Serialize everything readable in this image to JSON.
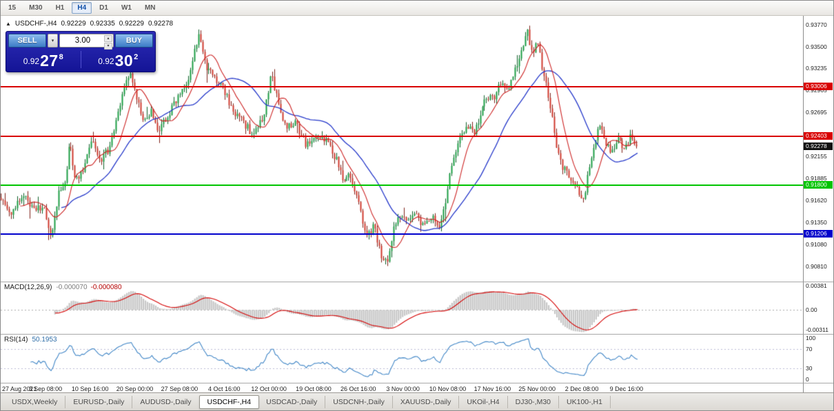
{
  "toolbar": {
    "timeframes": [
      "15",
      "M30",
      "H1",
      "H4",
      "D1",
      "W1",
      "MN"
    ],
    "active": "H4"
  },
  "chart": {
    "collapse_icon": "▲",
    "header": {
      "symbol": "USDCHF-,H4",
      "open": "0.92229",
      "high": "0.92335",
      "low": "0.92229",
      "close": "0.92278"
    },
    "hlines": [
      {
        "label": "0.93006",
        "price": 0.93006,
        "color": "#d90000"
      },
      {
        "label": "0.92403",
        "price": 0.92403,
        "color": "#d90000"
      },
      {
        "label": "0.91800",
        "price": 0.918,
        "color": "#00c400"
      },
      {
        "label": "0.91206",
        "price": 0.91206,
        "color": "#0000cc"
      }
    ],
    "current_price": {
      "label": "0.92278",
      "price": 0.92278,
      "bg": "#101010"
    }
  },
  "trade_panel": {
    "sell_label": "SELL",
    "buy_label": "BUY",
    "volume": "3.00",
    "dropdown_icon": "▾",
    "spin_up_icon": "▴",
    "spin_down_icon": "▾",
    "sell_price": {
      "prefix": "0.92",
      "pips": "27",
      "point": "8"
    },
    "buy_price": {
      "prefix": "0.92",
      "pips": "30",
      "point": "2"
    }
  },
  "price_axis": {
    "ticks": [
      {
        "label": "0.93770",
        "value": 0.9377
      },
      {
        "label": "0.93500",
        "value": 0.935
      },
      {
        "label": "0.93235",
        "value": 0.93235
      },
      {
        "label": "0.92965",
        "value": 0.92965
      },
      {
        "label": "0.92695",
        "value": 0.92695
      },
      {
        "label": "0.92425",
        "value": 0.92425
      },
      {
        "label": "0.92155",
        "value": 0.92155
      },
      {
        "label": "0.91885",
        "value": 0.91885
      },
      {
        "label": "0.91620",
        "value": 0.9162
      },
      {
        "label": "0.91350",
        "value": 0.9135
      },
      {
        "label": "0.91080",
        "value": 0.9108
      },
      {
        "label": "0.90810",
        "value": 0.9081
      }
    ]
  },
  "indicators": {
    "macd": {
      "name": "MACD(12,26,9)",
      "value_main": "-0.000070",
      "value_signal": "-0.000080",
      "fast": 12,
      "slow": 26,
      "signal": 9,
      "range": [
        -0.0038,
        0.0044
      ],
      "histogram_color": "#c6c6c6",
      "signal_color": "#d40000",
      "ticks": [
        {
          "label": "0.00381",
          "value": 0.00381
        },
        {
          "label": "0.00",
          "value": 0
        },
        {
          "label": "-0.00311",
          "value": -0.00311
        }
      ]
    },
    "rsi": {
      "name": "RSI(14)",
      "value": "50.1953",
      "period": 14,
      "levels": [
        70,
        30
      ],
      "line_color": "#3f85c6",
      "range": [
        0,
        100
      ],
      "ticks": [
        {
          "label": "100",
          "value": 100
        },
        {
          "label": "70",
          "value": 70
        },
        {
          "label": "30",
          "value": 30
        },
        {
          "label": "0",
          "value": 0
        }
      ]
    }
  },
  "time_axis": {
    "span_fraction": 0.78,
    "labels": [
      "27 Aug 2021",
      "3 Sep 08:00",
      "10 Sep 16:00",
      "20 Sep 00:00",
      "27 Sep 08:00",
      "4 Oct 16:00",
      "12 Oct 00:00",
      "19 Oct 08:00",
      "26 Oct 16:00",
      "3 Nov 00:00",
      "10 Nov 08:00",
      "17 Nov 16:00",
      "25 Nov 00:00",
      "2 Dec 08:00",
      "9 Dec 16:00"
    ]
  },
  "tabs": {
    "items": [
      "USDX,Weekly",
      "EURUSD-,Daily",
      "AUDUSD-,Daily",
      "USDCHF-,H4",
      "USDCAD-,Daily",
      "USDCNH-,Daily",
      "XAUUSD-,Daily",
      "UKOil-,H4",
      "DJ30-,M30",
      "UK100-,H1"
    ],
    "active": "USDCHF-,H4"
  },
  "chart_data": {
    "type": "candlestick",
    "symbol": "USDCHF-",
    "timeframe": "H4",
    "ohlc_current": {
      "open": 0.92229,
      "high": 0.92335,
      "low": 0.92229,
      "close": 0.92278
    },
    "price_range": [
      0.9062,
      0.9388
    ],
    "data_fraction": 0.795,
    "candle_count": 310,
    "seed": 9,
    "noise": 0.00095,
    "wick": 0.0006,
    "last_close": 0.92278,
    "ma_fast_period": 10,
    "ma_slow_period": 30,
    "colors": {
      "up": "#1d9e45",
      "up_border": "#0c5f27",
      "down": "#cf3a2e",
      "down_border": "#7c1f17",
      "ma_fast": "#cc2222",
      "ma_slow": "#2336c9"
    },
    "anchors": [
      [
        0.0,
        0.9165
      ],
      [
        0.014,
        0.9142
      ],
      [
        0.025,
        0.916
      ],
      [
        0.036,
        0.9166
      ],
      [
        0.052,
        0.915
      ],
      [
        0.068,
        0.9156
      ],
      [
        0.077,
        0.9112
      ],
      [
        0.09,
        0.917
      ],
      [
        0.101,
        0.9182
      ],
      [
        0.108,
        0.9236
      ],
      [
        0.117,
        0.9186
      ],
      [
        0.131,
        0.92
      ],
      [
        0.144,
        0.9236
      ],
      [
        0.155,
        0.921
      ],
      [
        0.171,
        0.9226
      ],
      [
        0.187,
        0.9276
      ],
      [
        0.203,
        0.9322
      ],
      [
        0.214,
        0.9286
      ],
      [
        0.225,
        0.9256
      ],
      [
        0.236,
        0.927
      ],
      [
        0.246,
        0.9246
      ],
      [
        0.263,
        0.9266
      ],
      [
        0.279,
        0.929
      ],
      [
        0.295,
        0.9312
      ],
      [
        0.311,
        0.9368
      ],
      [
        0.322,
        0.9326
      ],
      [
        0.336,
        0.9312
      ],
      [
        0.349,
        0.93
      ],
      [
        0.365,
        0.9272
      ],
      [
        0.382,
        0.9256
      ],
      [
        0.398,
        0.9242
      ],
      [
        0.414,
        0.9268
      ],
      [
        0.425,
        0.9316
      ],
      [
        0.436,
        0.9282
      ],
      [
        0.446,
        0.9252
      ],
      [
        0.463,
        0.9256
      ],
      [
        0.479,
        0.923
      ],
      [
        0.495,
        0.9242
      ],
      [
        0.511,
        0.9236
      ],
      [
        0.528,
        0.921
      ],
      [
        0.538,
        0.9186
      ],
      [
        0.549,
        0.9196
      ],
      [
        0.56,
        0.9166
      ],
      [
        0.576,
        0.9116
      ],
      [
        0.587,
        0.913
      ],
      [
        0.598,
        0.9096
      ],
      [
        0.609,
        0.9083
      ],
      [
        0.619,
        0.913
      ],
      [
        0.63,
        0.9146
      ],
      [
        0.641,
        0.9136
      ],
      [
        0.652,
        0.915
      ],
      [
        0.663,
        0.913
      ],
      [
        0.679,
        0.914
      ],
      [
        0.69,
        0.9128
      ],
      [
        0.7,
        0.9165
      ],
      [
        0.711,
        0.9215
      ],
      [
        0.722,
        0.924
      ],
      [
        0.733,
        0.9256
      ],
      [
        0.744,
        0.924
      ],
      [
        0.755,
        0.927
      ],
      [
        0.765,
        0.929
      ],
      [
        0.776,
        0.9286
      ],
      [
        0.787,
        0.9306
      ],
      [
        0.798,
        0.93
      ],
      [
        0.808,
        0.9322
      ],
      [
        0.819,
        0.9342
      ],
      [
        0.827,
        0.9372
      ],
      [
        0.836,
        0.9342
      ],
      [
        0.844,
        0.9356
      ],
      [
        0.852,
        0.9322
      ],
      [
        0.863,
        0.9282
      ],
      [
        0.873,
        0.9232
      ],
      [
        0.884,
        0.9202
      ],
      [
        0.895,
        0.9192
      ],
      [
        0.906,
        0.9176
      ],
      [
        0.917,
        0.916
      ],
      [
        0.924,
        0.92
      ],
      [
        0.933,
        0.923
      ],
      [
        0.942,
        0.9256
      ],
      [
        0.95,
        0.9232
      ],
      [
        0.96,
        0.922
      ],
      [
        0.971,
        0.9236
      ],
      [
        0.981,
        0.9226
      ],
      [
        0.992,
        0.9242
      ],
      [
        1.0,
        0.92278
      ]
    ]
  }
}
